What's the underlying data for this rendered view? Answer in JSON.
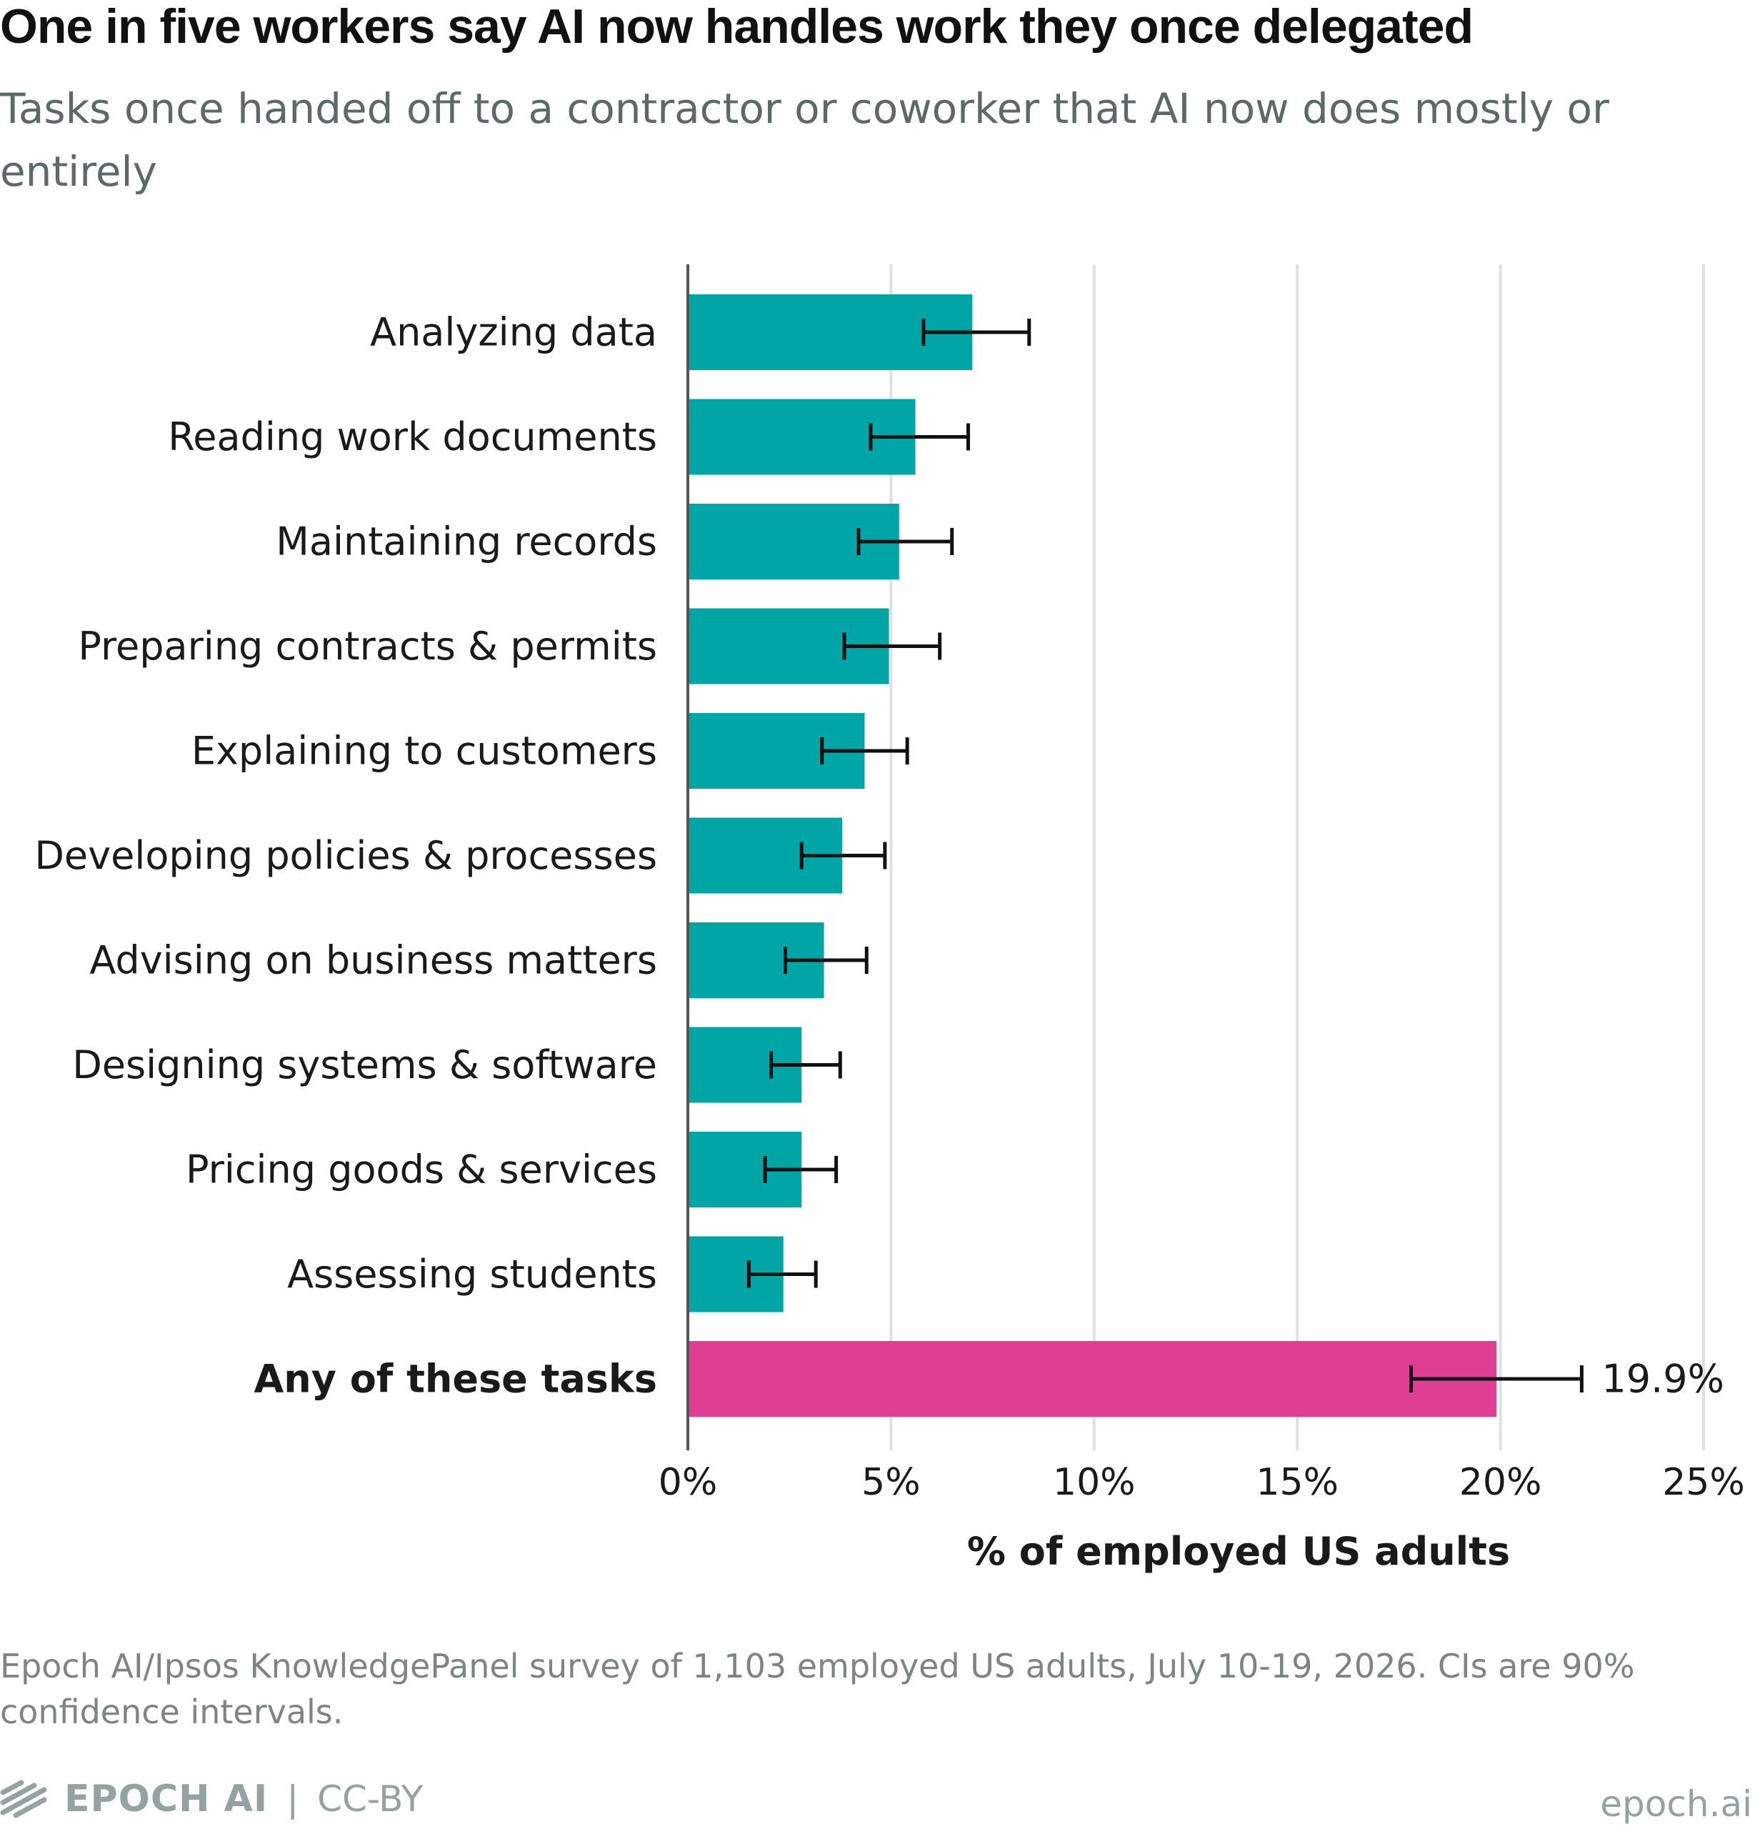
{
  "header": {
    "title": "One in five workers say AI now handles work they once delegated",
    "subtitle": "Tasks once handed off to a contractor or coworker that AI now does mostly or entirely"
  },
  "chart_data": {
    "type": "bar",
    "orientation": "horizontal",
    "categories": [
      "Analyzing data",
      "Reading work documents",
      "Maintaining records",
      "Preparing contracts & permits",
      "Explaining to customers",
      "Developing policies & processes",
      "Advising on business matters",
      "Designing systems & software",
      "Pricing goods & services",
      "Assessing students",
      "Any of these tasks"
    ],
    "values": [
      7.0,
      5.6,
      5.2,
      4.95,
      4.35,
      3.8,
      3.35,
      2.8,
      2.8,
      2.35,
      19.9
    ],
    "ci_low": [
      5.8,
      4.5,
      4.2,
      3.85,
      3.3,
      2.8,
      2.4,
      2.05,
      1.9,
      1.5,
      17.8
    ],
    "ci_high": [
      8.4,
      6.9,
      6.5,
      6.2,
      5.4,
      4.85,
      4.4,
      3.75,
      3.65,
      3.15,
      22.0
    ],
    "emphasized": [
      false,
      false,
      false,
      false,
      false,
      false,
      false,
      false,
      false,
      false,
      true
    ],
    "data_labels": [
      "",
      "",
      "",
      "",
      "",
      "",
      "",
      "",
      "",
      "",
      "19.9%"
    ],
    "xlabel": "% of employed US adults",
    "ylabel": "",
    "xlim": [
      0,
      25
    ],
    "xticks": [
      0,
      5,
      10,
      15,
      20,
      25
    ],
    "xtick_labels": [
      "0%",
      "5%",
      "10%",
      "15%",
      "20%",
      "25%"
    ],
    "grid": "vertical",
    "colors": {
      "bar": "#00a5a6",
      "highlight": "#df3f93",
      "errorbar": "#111111",
      "grid": "#e0e0e0",
      "axis": "#555555"
    }
  },
  "footer": {
    "note": "Epoch AI/Ipsos KnowledgePanel survey of 1,103 employed US adults, July 10-19, 2026. CIs are 90% confidence intervals.",
    "brand": "EPOCH AI",
    "separator": "|",
    "license": "CC-BY",
    "site": "epoch.ai"
  }
}
